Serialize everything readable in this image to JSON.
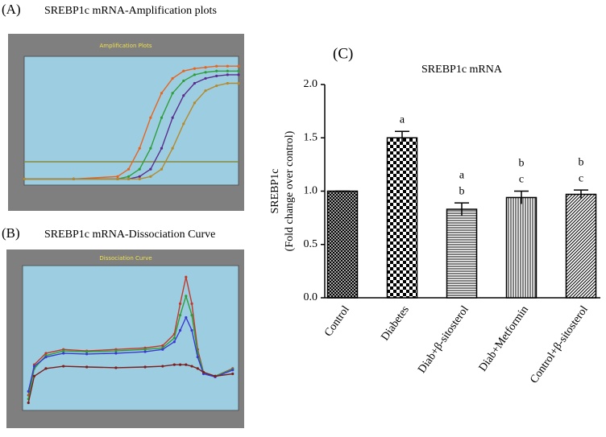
{
  "chart_data": [
    {
      "type": "line",
      "panel_label": "(A)",
      "heading": "SREBP1c mRNA-Amplification plots",
      "title": "Amplification Plots",
      "x": [
        1,
        10,
        18,
        20,
        22,
        24,
        26,
        28,
        30,
        32,
        34,
        36,
        38,
        40
      ],
      "xlim": [
        1,
        40
      ],
      "ylim": [
        -0.05,
        1
      ],
      "threshold": 0.14,
      "threshold_color": "#8a8a3c",
      "series": [
        {
          "color": "#e8641e",
          "values": [
            0,
            0,
            0.02,
            0.08,
            0.25,
            0.5,
            0.7,
            0.82,
            0.88,
            0.9,
            0.91,
            0.92,
            0.92,
            0.92
          ]
        },
        {
          "color": "#2f9e3a",
          "values": [
            0,
            0,
            0,
            0.02,
            0.08,
            0.25,
            0.5,
            0.7,
            0.8,
            0.85,
            0.87,
            0.88,
            0.88,
            0.88
          ]
        },
        {
          "color": "#5b2d8e",
          "values": [
            0,
            0,
            0,
            0,
            0.02,
            0.08,
            0.25,
            0.5,
            0.68,
            0.78,
            0.82,
            0.84,
            0.85,
            0.85
          ]
        },
        {
          "color": "#b58a2a",
          "values": [
            0,
            0,
            0,
            0,
            0,
            0.02,
            0.08,
            0.25,
            0.45,
            0.62,
            0.72,
            0.76,
            0.78,
            0.78
          ]
        }
      ]
    },
    {
      "type": "line",
      "panel_label": "(B)",
      "heading": "SREBP1c mRNA-Dissociation Curve",
      "title": "Dissociation Curve",
      "x": [
        60,
        61,
        63,
        66,
        70,
        75,
        80,
        83,
        85,
        86,
        87,
        88,
        89,
        90,
        92,
        95
      ],
      "xlim": [
        59,
        96
      ],
      "ylim": [
        -0.5,
        1.4
      ],
      "series": [
        {
          "color": "#c0392b",
          "values": [
            -0.3,
            0.1,
            0.25,
            0.3,
            0.28,
            0.3,
            0.32,
            0.35,
            0.5,
            0.9,
            1.25,
            0.9,
            0.3,
            0.0,
            -0.05,
            0.05
          ]
        },
        {
          "color": "#2f9e3a",
          "values": [
            -0.35,
            0.05,
            0.22,
            0.28,
            0.27,
            0.28,
            0.3,
            0.32,
            0.45,
            0.75,
            1.0,
            0.75,
            0.25,
            0.0,
            -0.05,
            0.04
          ]
        },
        {
          "color": "#3a3ad0",
          "values": [
            -0.25,
            0.08,
            0.2,
            0.25,
            0.24,
            0.25,
            0.27,
            0.3,
            0.4,
            0.55,
            0.72,
            0.55,
            0.2,
            -0.02,
            -0.06,
            0.03
          ]
        },
        {
          "color": "#7a1e1e",
          "values": [
            -0.4,
            -0.05,
            0.05,
            0.08,
            0.07,
            0.06,
            0.07,
            0.08,
            0.1,
            0.1,
            0.1,
            0.08,
            0.05,
            0.0,
            -0.05,
            -0.02
          ]
        }
      ]
    },
    {
      "type": "bar",
      "panel_label": "(C)",
      "title": "SREBP1c mRNA",
      "ylabel": [
        "SREBP1c",
        "(Fold change over control)"
      ],
      "categories": [
        "Control",
        "Diabetes",
        "Diab+β-sitosterol",
        "Diab+Metformin",
        "Control+β-sitosterol"
      ],
      "values": [
        1.0,
        1.5,
        0.83,
        0.94,
        0.97
      ],
      "errors": [
        0,
        0.06,
        0.06,
        0.06,
        0.04
      ],
      "significance": [
        [],
        [
          "a"
        ],
        [
          "a",
          "b"
        ],
        [
          "b",
          "c"
        ],
        [
          "b",
          "c"
        ]
      ],
      "patterns": [
        "crosshatch",
        "checker",
        "horizontal",
        "vertical",
        "diagonal"
      ],
      "color": "#000000",
      "ylim": [
        0,
        2
      ],
      "yticks": [
        {
          "value": 0,
          "label": "0.0"
        },
        {
          "value": 0.5,
          "label": "0.5"
        },
        {
          "value": 1,
          "label": "1.0"
        },
        {
          "value": 1.5,
          "label": "1.5"
        },
        {
          "value": 2,
          "label": "2.0"
        }
      ]
    }
  ]
}
